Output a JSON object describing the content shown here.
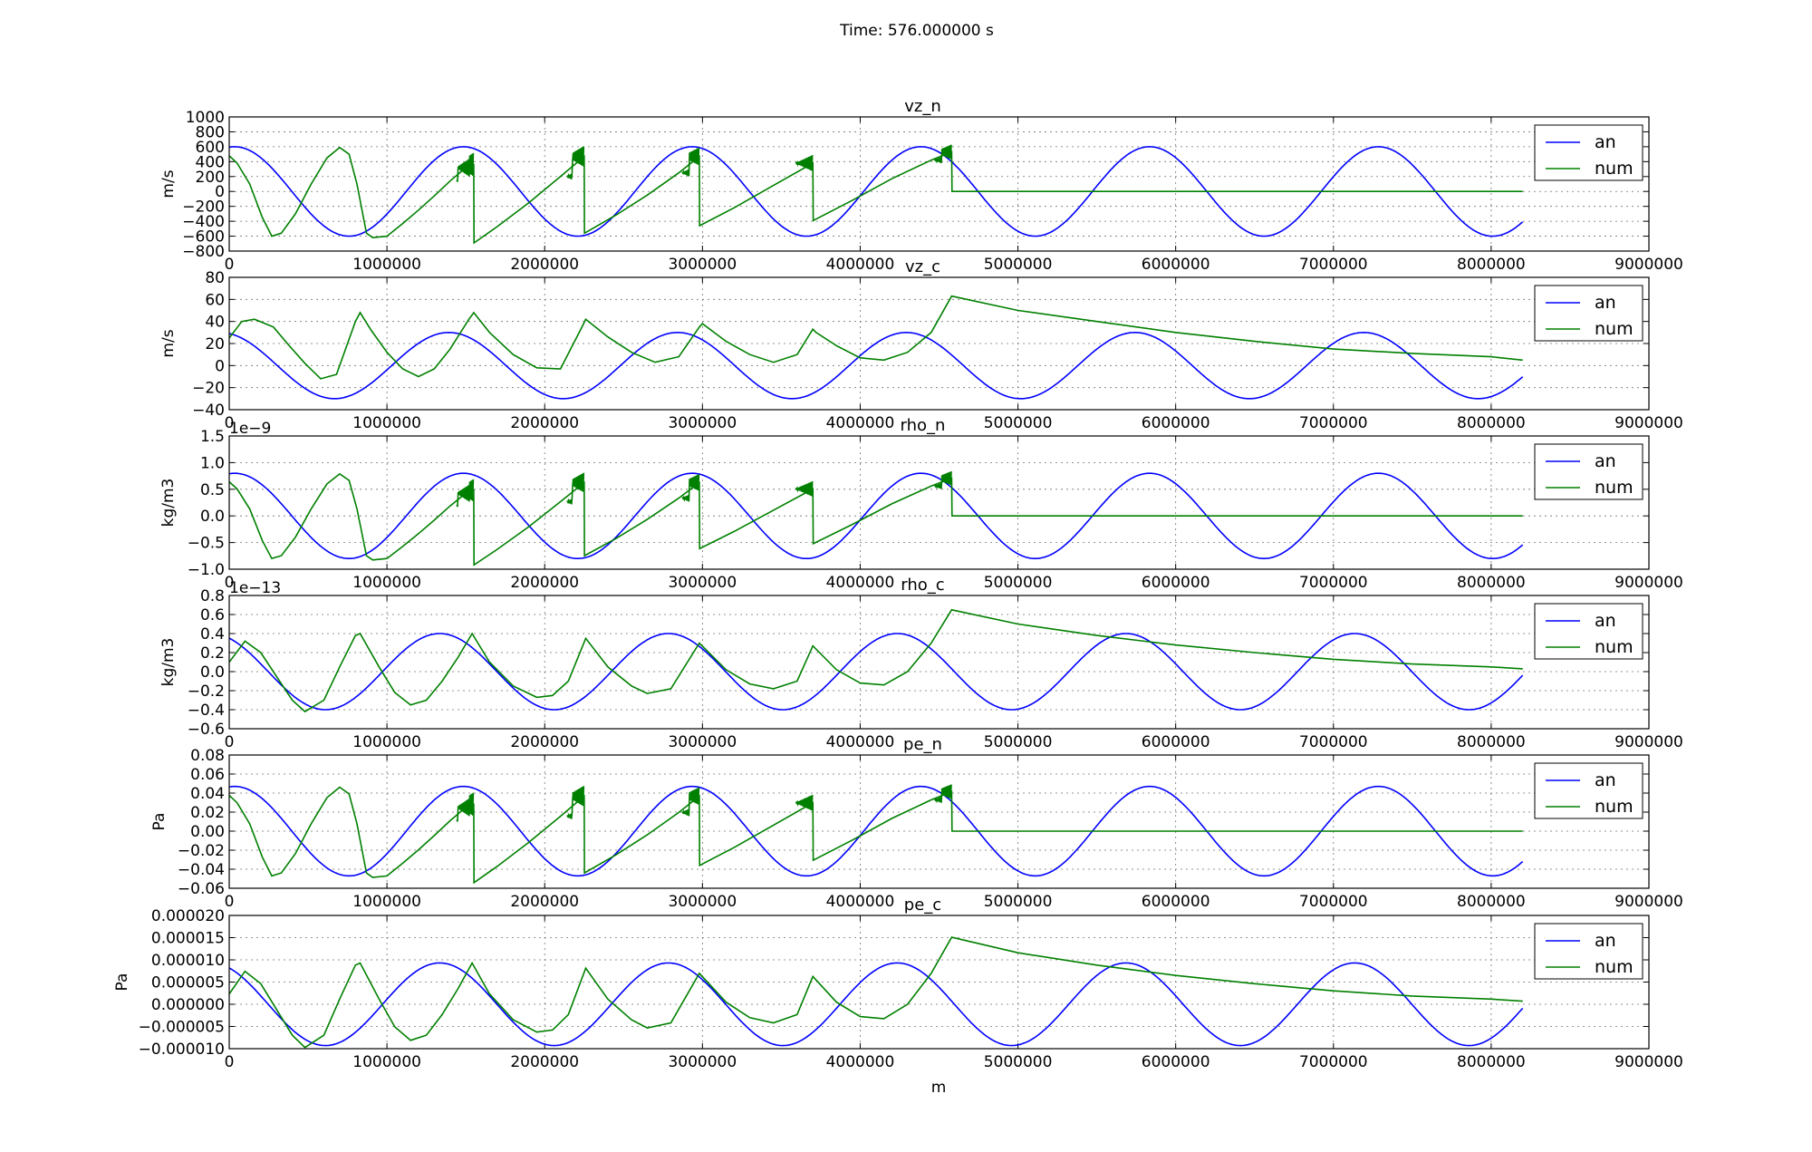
{
  "figure": {
    "suptitle": "Time: 576.000000 s",
    "xlabel": "m",
    "colors": {
      "an": "#0000ff",
      "num": "#008000"
    }
  },
  "chart_data": [
    {
      "type": "line",
      "title": "vz_n",
      "ylabel": "m/s",
      "offset_text": "",
      "xlim": [
        0,
        9000000
      ],
      "ylim": [
        -800,
        1000
      ],
      "xticks": [
        0,
        1000000,
        2000000,
        3000000,
        4000000,
        5000000,
        6000000,
        7000000,
        8000000,
        9000000
      ],
      "xtick_labels": [
        "0",
        "1000000",
        "2000000",
        "3000000",
        "4000000",
        "5000000",
        "6000000",
        "7000000",
        "8000000",
        "9000000"
      ],
      "yticks": [
        -800,
        -600,
        -400,
        -200,
        0,
        200,
        400,
        600,
        800,
        1000
      ],
      "ytick_labels": [
        "−800",
        "−600",
        "−400",
        "−200",
        "0",
        "200",
        "400",
        "600",
        "800",
        "1000"
      ],
      "grid": true,
      "legend": "upper right",
      "series": [
        {
          "name": "an",
          "kind": "sine",
          "amplitude": 600,
          "offset": 0,
          "period": 1450000,
          "phase": 0.2,
          "x_end": 8200000
        },
        {
          "name": "num",
          "kind": "neutral",
          "amplitude": 600,
          "x_end": 8200000,
          "x": [
            0,
            50000,
            130000,
            210000,
            270000,
            330000,
            420000,
            520000,
            620000,
            700000,
            760000,
            810000,
            870000,
            910000,
            1000000,
            1100000,
            1200000,
            1300000,
            1400000,
            1500000,
            1550000,
            1552000,
            1700000,
            1900000,
            2100000,
            2250000,
            2252000,
            2450000,
            2650000,
            2850000,
            2980000,
            2982000,
            3200000,
            3450000,
            3700000,
            3702000,
            3950000,
            4200000,
            4450000,
            4580000,
            4582000,
            8200000
          ],
          "y": [
            480,
            380,
            100,
            -350,
            -600,
            -560,
            -300,
            100,
            450,
            590,
            500,
            100,
            -560,
            -620,
            -600,
            -430,
            -250,
            -60,
            140,
            320,
            360,
            -690,
            -470,
            -150,
            200,
            470,
            -560,
            -320,
            -50,
            250,
            470,
            -460,
            -220,
            80,
            380,
            -390,
            -120,
            170,
            420,
            530,
            0,
            0
          ],
          "spikes": [
            {
              "x": 1550000,
              "amp": 160
            },
            {
              "x": 2250000,
              "amp": 140
            },
            {
              "x": 2980000,
              "amp": 120
            },
            {
              "x": 3700000,
              "amp": 110
            },
            {
              "x": 4580000,
              "amp": 100
            }
          ]
        }
      ]
    },
    {
      "type": "line",
      "title": "vz_c",
      "ylabel": "m/s",
      "offset_text": "",
      "xlim": [
        0,
        9000000
      ],
      "ylim": [
        -40,
        80
      ],
      "xticks": [
        0,
        1000000,
        2000000,
        3000000,
        4000000,
        5000000,
        6000000,
        7000000,
        8000000,
        9000000
      ],
      "xtick_labels": [
        "0",
        "1000000",
        "2000000",
        "3000000",
        "4000000",
        "5000000",
        "6000000",
        "7000000",
        "8000000",
        "9000000"
      ],
      "yticks": [
        -40,
        -20,
        0,
        20,
        40,
        60,
        80
      ],
      "ytick_labels": [
        "−40",
        "−20",
        "0",
        "20",
        "40",
        "60",
        "80"
      ],
      "grid": true,
      "legend": "upper right",
      "series": [
        {
          "name": "an",
          "kind": "sine",
          "amplitude": 30,
          "offset": 0,
          "period": 1450000,
          "phase": 0.6,
          "x_end": 8200000
        },
        {
          "name": "num",
          "kind": "points",
          "x_end": 8200000,
          "x": [
            0,
            80000,
            160000,
            280000,
            380000,
            480000,
            580000,
            680000,
            800000,
            830000,
            900000,
            1000000,
            1100000,
            1200000,
            1300000,
            1400000,
            1520000,
            1550000,
            1650000,
            1800000,
            1950000,
            2100000,
            2240000,
            2260000,
            2400000,
            2550000,
            2700000,
            2850000,
            2980000,
            3000000,
            3150000,
            3300000,
            3450000,
            3600000,
            3700000,
            3720000,
            3850000,
            4000000,
            4150000,
            4300000,
            4450000,
            4580000,
            5000000,
            5500000,
            6000000,
            6500000,
            7000000,
            7500000,
            8000000,
            8200000
          ],
          "y": [
            25,
            40,
            42,
            35,
            18,
            2,
            -12,
            -8,
            40,
            48,
            32,
            12,
            -3,
            -10,
            -3,
            15,
            42,
            48,
            30,
            10,
            -2,
            -3,
            36,
            42,
            26,
            12,
            3,
            8,
            35,
            38,
            22,
            10,
            3,
            10,
            33,
            30,
            18,
            7,
            5,
            12,
            30,
            63,
            50,
            40,
            30,
            22,
            15,
            11,
            8,
            5
          ]
        }
      ]
    },
    {
      "type": "line",
      "title": "rho_n",
      "ylabel": "kg/m3",
      "offset_text": "1e−9",
      "xlim": [
        0,
        9000000
      ],
      "ylim": [
        -1.0,
        1.5
      ],
      "xticks": [
        0,
        1000000,
        2000000,
        3000000,
        4000000,
        5000000,
        6000000,
        7000000,
        8000000,
        9000000
      ],
      "xtick_labels": [
        "0",
        "1000000",
        "2000000",
        "3000000",
        "4000000",
        "5000000",
        "6000000",
        "7000000",
        "8000000",
        "9000000"
      ],
      "yticks": [
        -1.0,
        -0.5,
        0.0,
        0.5,
        1.0,
        1.5
      ],
      "ytick_labels": [
        "−1.0",
        "−0.5",
        "0.0",
        "0.5",
        "1.0",
        "1.5"
      ],
      "grid": true,
      "legend": "upper right",
      "series": [
        {
          "name": "an",
          "kind": "sine",
          "amplitude": 0.8,
          "offset": 0,
          "period": 1450000,
          "phase": 0.2,
          "x_end": 8200000
        },
        {
          "name": "num",
          "kind": "neutral",
          "amplitude": 0.8,
          "x_end": 8200000,
          "spike_scale": 0.0014
        },
        {
          "note": "shape identical to vz_n numeric scaled to 0.8 amplitude"
        }
      ]
    },
    {
      "type": "line",
      "title": "rho_c",
      "ylabel": "kg/m3",
      "offset_text": "1e−13",
      "xlim": [
        0,
        9000000
      ],
      "ylim": [
        -0.6,
        0.8
      ],
      "xticks": [
        0,
        1000000,
        2000000,
        3000000,
        4000000,
        5000000,
        6000000,
        7000000,
        8000000,
        9000000
      ],
      "xtick_labels": [
        "0",
        "1000000",
        "2000000",
        "3000000",
        "4000000",
        "5000000",
        "6000000",
        "7000000",
        "8000000",
        "9000000"
      ],
      "yticks": [
        -0.6,
        -0.4,
        -0.2,
        0.0,
        0.2,
        0.4,
        0.6,
        0.8
      ],
      "ytick_labels": [
        "−0.6",
        "−0.4",
        "−0.2",
        "0.0",
        "0.2",
        "0.4",
        "0.6",
        "0.8"
      ],
      "grid": true,
      "legend": "upper right",
      "series": [
        {
          "name": "an",
          "kind": "sine",
          "amplitude": 0.4,
          "offset": 0,
          "period": 1450000,
          "phase": 0.85,
          "x_end": 8200000
        },
        {
          "name": "num",
          "kind": "points",
          "x_end": 8200000,
          "x": [
            0,
            100000,
            200000,
            300000,
            400000,
            480000,
            600000,
            700000,
            800000,
            830000,
            950000,
            1050000,
            1150000,
            1250000,
            1350000,
            1450000,
            1540000,
            1650000,
            1800000,
            1950000,
            2050000,
            2150000,
            2260000,
            2400000,
            2550000,
            2650000,
            2800000,
            2980000,
            3150000,
            3300000,
            3450000,
            3600000,
            3700000,
            3850000,
            4000000,
            4150000,
            4300000,
            4450000,
            4580000,
            5000000,
            5500000,
            6000000,
            6500000,
            7000000,
            7500000,
            8000000,
            8200000
          ],
          "y": [
            0.1,
            0.32,
            0.2,
            -0.05,
            -0.3,
            -0.42,
            -0.3,
            0.05,
            0.38,
            0.4,
            0.05,
            -0.22,
            -0.35,
            -0.3,
            -0.1,
            0.15,
            0.4,
            0.1,
            -0.15,
            -0.27,
            -0.25,
            -0.1,
            0.35,
            0.05,
            -0.15,
            -0.23,
            -0.18,
            0.3,
            0.02,
            -0.13,
            -0.18,
            -0.1,
            0.27,
            0.02,
            -0.12,
            -0.14,
            0.0,
            0.3,
            0.65,
            0.5,
            0.38,
            0.28,
            0.2,
            0.13,
            0.08,
            0.05,
            0.03
          ]
        }
      ]
    },
    {
      "type": "line",
      "title": "pe_n",
      "ylabel": "Pa",
      "offset_text": "",
      "xlim": [
        0,
        9000000
      ],
      "ylim": [
        -0.06,
        0.08
      ],
      "xticks": [
        0,
        1000000,
        2000000,
        3000000,
        4000000,
        5000000,
        6000000,
        7000000,
        8000000,
        9000000
      ],
      "xtick_labels": [
        "0",
        "1000000",
        "2000000",
        "3000000",
        "4000000",
        "5000000",
        "6000000",
        "7000000",
        "8000000",
        "9000000"
      ],
      "yticks": [
        -0.06,
        -0.04,
        -0.02,
        0.0,
        0.02,
        0.04,
        0.06,
        0.08
      ],
      "ytick_labels": [
        "−0.06",
        "−0.04",
        "−0.02",
        "0.00",
        "0.02",
        "0.04",
        "0.06",
        "0.08"
      ],
      "grid": true,
      "legend": "upper right",
      "series": [
        {
          "name": "an",
          "kind": "sine",
          "amplitude": 0.047,
          "offset": 0,
          "period": 1450000,
          "phase": 0.2,
          "x_end": 8200000
        },
        {
          "name": "num",
          "kind": "neutral",
          "amplitude": 0.047,
          "x_end": 8200000
        }
      ]
    },
    {
      "type": "line",
      "title": "pe_c",
      "ylabel": "Pa",
      "offset_text": "",
      "xlim": [
        0,
        9000000
      ],
      "ylim": [
        -1e-05,
        2e-05
      ],
      "xticks": [
        0,
        1000000,
        2000000,
        3000000,
        4000000,
        5000000,
        6000000,
        7000000,
        8000000,
        9000000
      ],
      "xtick_labels": [
        "0",
        "1000000",
        "2000000",
        "3000000",
        "4000000",
        "5000000",
        "6000000",
        "7000000",
        "8000000",
        "9000000"
      ],
      "yticks": [
        -1e-05,
        -5e-06,
        0,
        5e-06,
        1e-05,
        1.5e-05,
        2e-05
      ],
      "ytick_labels": [
        "−0.000010",
        "−0.000005",
        "0.000000",
        "0.000005",
        "0.000010",
        "0.000015",
        "0.000020"
      ],
      "grid": true,
      "legend": "upper right",
      "series": [
        {
          "name": "an",
          "kind": "sine",
          "amplitude": 9.3e-06,
          "offset": 0,
          "period": 1450000,
          "phase": 0.85,
          "x_end": 8200000
        },
        {
          "name": "num",
          "kind": "scaled",
          "source_panel": 3,
          "scale": 2.32e-05,
          "x_end": 8200000
        }
      ]
    }
  ],
  "legend_labels": [
    "an",
    "num"
  ]
}
